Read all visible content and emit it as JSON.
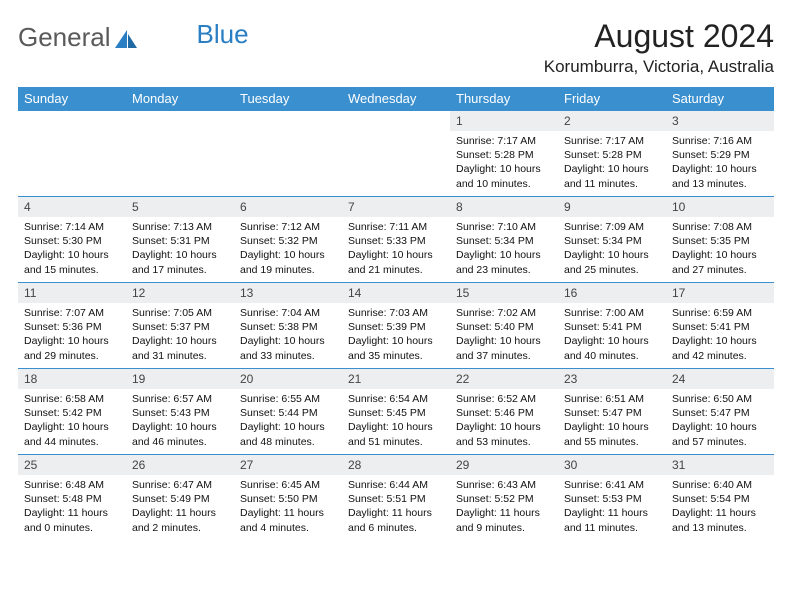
{
  "brand": {
    "part1": "General",
    "part2": "Blue"
  },
  "title": "August 2024",
  "location": "Korumburra, Victoria, Australia",
  "colors": {
    "header_bg": "#3a8fcf",
    "header_text": "#ffffff",
    "daynum_bg": "#eceef0",
    "border": "#3a8fcf",
    "brand_gray": "#5a5a5a",
    "brand_blue": "#2a7ec4"
  },
  "day_headers": [
    "Sunday",
    "Monday",
    "Tuesday",
    "Wednesday",
    "Thursday",
    "Friday",
    "Saturday"
  ],
  "weeks": [
    [
      {
        "n": "",
        "sr": "",
        "ss": "",
        "dl": ""
      },
      {
        "n": "",
        "sr": "",
        "ss": "",
        "dl": ""
      },
      {
        "n": "",
        "sr": "",
        "ss": "",
        "dl": ""
      },
      {
        "n": "",
        "sr": "",
        "ss": "",
        "dl": ""
      },
      {
        "n": "1",
        "sr": "Sunrise: 7:17 AM",
        "ss": "Sunset: 5:28 PM",
        "dl": "Daylight: 10 hours and 10 minutes."
      },
      {
        "n": "2",
        "sr": "Sunrise: 7:17 AM",
        "ss": "Sunset: 5:28 PM",
        "dl": "Daylight: 10 hours and 11 minutes."
      },
      {
        "n": "3",
        "sr": "Sunrise: 7:16 AM",
        "ss": "Sunset: 5:29 PM",
        "dl": "Daylight: 10 hours and 13 minutes."
      }
    ],
    [
      {
        "n": "4",
        "sr": "Sunrise: 7:14 AM",
        "ss": "Sunset: 5:30 PM",
        "dl": "Daylight: 10 hours and 15 minutes."
      },
      {
        "n": "5",
        "sr": "Sunrise: 7:13 AM",
        "ss": "Sunset: 5:31 PM",
        "dl": "Daylight: 10 hours and 17 minutes."
      },
      {
        "n": "6",
        "sr": "Sunrise: 7:12 AM",
        "ss": "Sunset: 5:32 PM",
        "dl": "Daylight: 10 hours and 19 minutes."
      },
      {
        "n": "7",
        "sr": "Sunrise: 7:11 AM",
        "ss": "Sunset: 5:33 PM",
        "dl": "Daylight: 10 hours and 21 minutes."
      },
      {
        "n": "8",
        "sr": "Sunrise: 7:10 AM",
        "ss": "Sunset: 5:34 PM",
        "dl": "Daylight: 10 hours and 23 minutes."
      },
      {
        "n": "9",
        "sr": "Sunrise: 7:09 AM",
        "ss": "Sunset: 5:34 PM",
        "dl": "Daylight: 10 hours and 25 minutes."
      },
      {
        "n": "10",
        "sr": "Sunrise: 7:08 AM",
        "ss": "Sunset: 5:35 PM",
        "dl": "Daylight: 10 hours and 27 minutes."
      }
    ],
    [
      {
        "n": "11",
        "sr": "Sunrise: 7:07 AM",
        "ss": "Sunset: 5:36 PM",
        "dl": "Daylight: 10 hours and 29 minutes."
      },
      {
        "n": "12",
        "sr": "Sunrise: 7:05 AM",
        "ss": "Sunset: 5:37 PM",
        "dl": "Daylight: 10 hours and 31 minutes."
      },
      {
        "n": "13",
        "sr": "Sunrise: 7:04 AM",
        "ss": "Sunset: 5:38 PM",
        "dl": "Daylight: 10 hours and 33 minutes."
      },
      {
        "n": "14",
        "sr": "Sunrise: 7:03 AM",
        "ss": "Sunset: 5:39 PM",
        "dl": "Daylight: 10 hours and 35 minutes."
      },
      {
        "n": "15",
        "sr": "Sunrise: 7:02 AM",
        "ss": "Sunset: 5:40 PM",
        "dl": "Daylight: 10 hours and 37 minutes."
      },
      {
        "n": "16",
        "sr": "Sunrise: 7:00 AM",
        "ss": "Sunset: 5:41 PM",
        "dl": "Daylight: 10 hours and 40 minutes."
      },
      {
        "n": "17",
        "sr": "Sunrise: 6:59 AM",
        "ss": "Sunset: 5:41 PM",
        "dl": "Daylight: 10 hours and 42 minutes."
      }
    ],
    [
      {
        "n": "18",
        "sr": "Sunrise: 6:58 AM",
        "ss": "Sunset: 5:42 PM",
        "dl": "Daylight: 10 hours and 44 minutes."
      },
      {
        "n": "19",
        "sr": "Sunrise: 6:57 AM",
        "ss": "Sunset: 5:43 PM",
        "dl": "Daylight: 10 hours and 46 minutes."
      },
      {
        "n": "20",
        "sr": "Sunrise: 6:55 AM",
        "ss": "Sunset: 5:44 PM",
        "dl": "Daylight: 10 hours and 48 minutes."
      },
      {
        "n": "21",
        "sr": "Sunrise: 6:54 AM",
        "ss": "Sunset: 5:45 PM",
        "dl": "Daylight: 10 hours and 51 minutes."
      },
      {
        "n": "22",
        "sr": "Sunrise: 6:52 AM",
        "ss": "Sunset: 5:46 PM",
        "dl": "Daylight: 10 hours and 53 minutes."
      },
      {
        "n": "23",
        "sr": "Sunrise: 6:51 AM",
        "ss": "Sunset: 5:47 PM",
        "dl": "Daylight: 10 hours and 55 minutes."
      },
      {
        "n": "24",
        "sr": "Sunrise: 6:50 AM",
        "ss": "Sunset: 5:47 PM",
        "dl": "Daylight: 10 hours and 57 minutes."
      }
    ],
    [
      {
        "n": "25",
        "sr": "Sunrise: 6:48 AM",
        "ss": "Sunset: 5:48 PM",
        "dl": "Daylight: 11 hours and 0 minutes."
      },
      {
        "n": "26",
        "sr": "Sunrise: 6:47 AM",
        "ss": "Sunset: 5:49 PM",
        "dl": "Daylight: 11 hours and 2 minutes."
      },
      {
        "n": "27",
        "sr": "Sunrise: 6:45 AM",
        "ss": "Sunset: 5:50 PM",
        "dl": "Daylight: 11 hours and 4 minutes."
      },
      {
        "n": "28",
        "sr": "Sunrise: 6:44 AM",
        "ss": "Sunset: 5:51 PM",
        "dl": "Daylight: 11 hours and 6 minutes."
      },
      {
        "n": "29",
        "sr": "Sunrise: 6:43 AM",
        "ss": "Sunset: 5:52 PM",
        "dl": "Daylight: 11 hours and 9 minutes."
      },
      {
        "n": "30",
        "sr": "Sunrise: 6:41 AM",
        "ss": "Sunset: 5:53 PM",
        "dl": "Daylight: 11 hours and 11 minutes."
      },
      {
        "n": "31",
        "sr": "Sunrise: 6:40 AM",
        "ss": "Sunset: 5:54 PM",
        "dl": "Daylight: 11 hours and 13 minutes."
      }
    ]
  ]
}
